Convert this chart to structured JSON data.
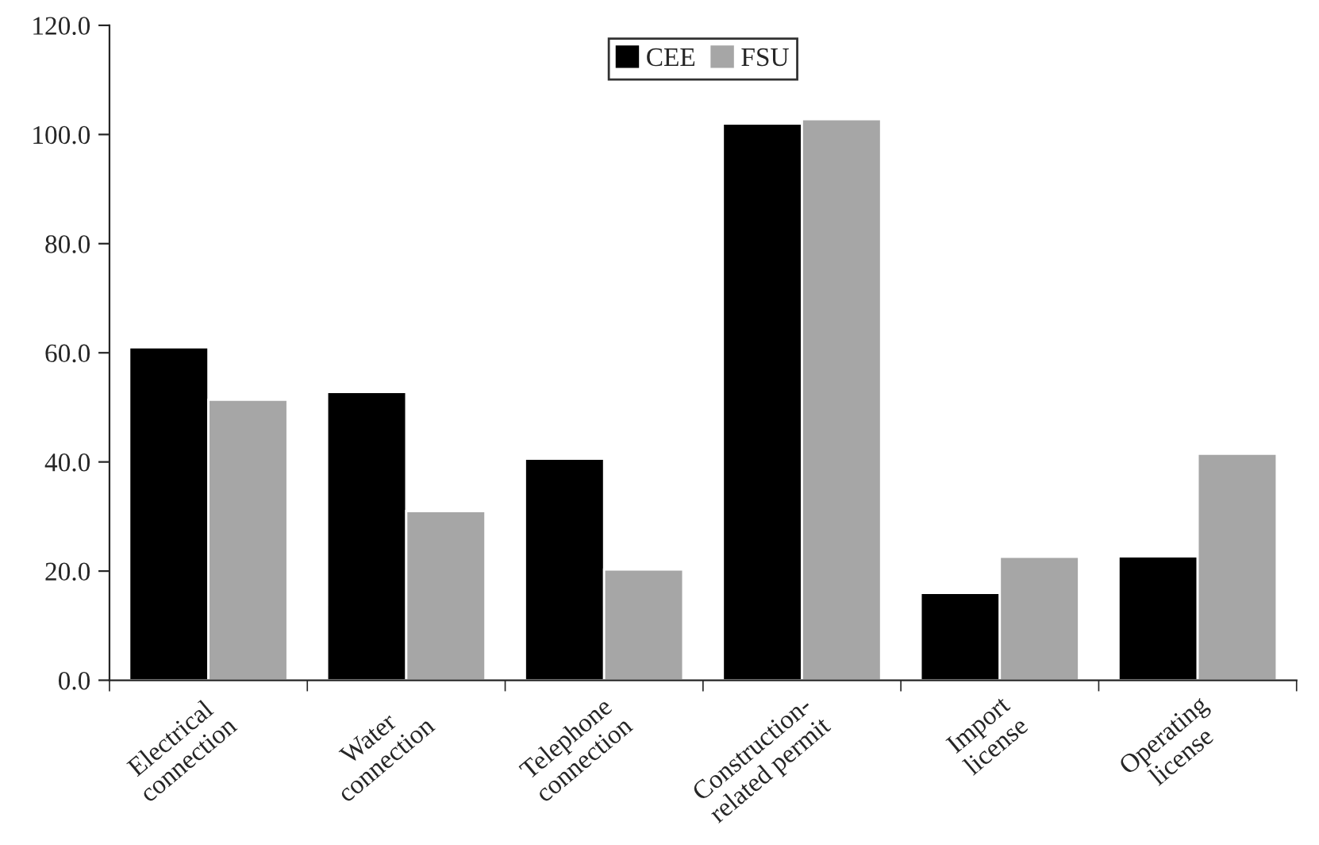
{
  "chart_data": {
    "type": "bar",
    "categories": [
      "Electrical\nconnection",
      "Water\nconnection",
      "Telephone\nconnection",
      "Construction-\nrelated permit",
      "Import\nlicense",
      "Operating\nlicense"
    ],
    "series": [
      {
        "name": "CEE",
        "color": "#000000",
        "values": [
          61.0,
          52.8,
          40.6,
          102.0,
          16.0,
          22.7
        ]
      },
      {
        "name": "FSU",
        "color": "#a6a6a6",
        "values": [
          51.4,
          31.0,
          20.3,
          102.8,
          22.6,
          41.5
        ]
      }
    ],
    "ylim": [
      0,
      120
    ],
    "yticks": [
      {
        "value": 0,
        "label": "0.0"
      },
      {
        "value": 20,
        "label": "20.0"
      },
      {
        "value": 40,
        "label": "40.0"
      },
      {
        "value": 60,
        "label": "60.0"
      },
      {
        "value": 80,
        "label": "80.0"
      },
      {
        "value": 100,
        "label": "100.0"
      },
      {
        "value": 120,
        "label": "120.0"
      }
    ],
    "grid": false,
    "legend": "top"
  }
}
